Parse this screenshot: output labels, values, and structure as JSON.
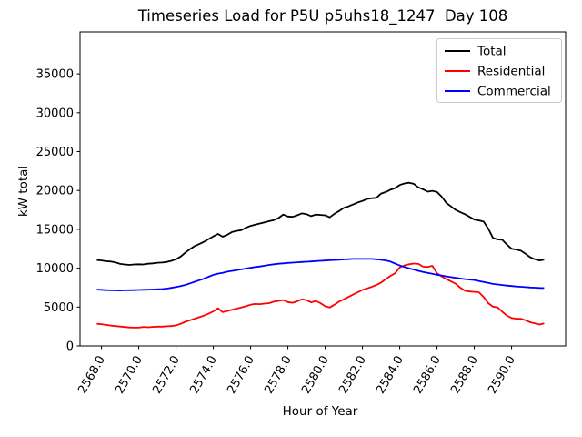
{
  "figure": {
    "background": "#ffffff"
  },
  "chart_data": {
    "type": "line",
    "title": "Timeseries Load for P5U p5uhs18_1247  Day 108",
    "xlabel": "Hour of Year",
    "ylabel": "kW total",
    "grid": false,
    "xlim": [
      2566.85,
      2592.9
    ],
    "ylim": [
      0,
      40400
    ],
    "yticks": [
      0,
      5000,
      10000,
      15000,
      20000,
      25000,
      30000,
      35000
    ],
    "xticks": [
      2568,
      2570,
      2572,
      2574,
      2576,
      2578,
      2580,
      2582,
      2584,
      2586,
      2588,
      2590
    ],
    "xtick_labels": [
      "2568.0",
      "2570.0",
      "2572.0",
      "2574.0",
      "2576.0",
      "2578.0",
      "2580.0",
      "2582.0",
      "2584.0",
      "2586.0",
      "2588.0",
      "2590.0"
    ],
    "legend": {
      "position": "upper right",
      "entries": [
        {
          "label": "Total",
          "color": "#000000"
        },
        {
          "label": "Residential",
          "color": "#ff0000"
        },
        {
          "label": "Commercial",
          "color": "#0000ff"
        }
      ]
    },
    "x": [
      2567.75,
      2568.0,
      2568.25,
      2568.5,
      2568.75,
      2569.0,
      2569.25,
      2569.5,
      2569.75,
      2570.0,
      2570.25,
      2570.5,
      2570.75,
      2571.0,
      2571.25,
      2571.5,
      2571.75,
      2572.0,
      2572.25,
      2572.5,
      2572.75,
      2573.0,
      2573.25,
      2573.5,
      2573.75,
      2574.0,
      2574.25,
      2574.5,
      2574.75,
      2575.0,
      2575.25,
      2575.5,
      2575.75,
      2576.0,
      2576.25,
      2576.5,
      2576.75,
      2577.0,
      2577.25,
      2577.5,
      2577.75,
      2578.0,
      2578.25,
      2578.5,
      2578.75,
      2579.0,
      2579.25,
      2579.5,
      2579.75,
      2580.0,
      2580.25,
      2580.5,
      2580.75,
      2581.0,
      2581.25,
      2581.5,
      2581.75,
      2582.0,
      2582.25,
      2582.5,
      2582.75,
      2583.0,
      2583.25,
      2583.5,
      2583.75,
      2584.0,
      2584.25,
      2584.5,
      2584.75,
      2585.0,
      2585.25,
      2585.5,
      2585.75,
      2586.0,
      2586.25,
      2586.5,
      2586.75,
      2587.0,
      2587.25,
      2587.5,
      2587.75,
      2588.0,
      2588.25,
      2588.5,
      2588.75,
      2589.0,
      2589.25,
      2589.5,
      2589.75,
      2590.0,
      2590.25,
      2590.5,
      2590.75,
      2591.0,
      2591.25,
      2591.5,
      2591.75
    ],
    "series": [
      {
        "name": "Total",
        "color": "#000000",
        "values": [
          11050,
          11000,
          10900,
          10850,
          10750,
          10550,
          10480,
          10420,
          10480,
          10500,
          10480,
          10570,
          10620,
          10700,
          10730,
          10800,
          10950,
          11150,
          11500,
          12000,
          12450,
          12850,
          13100,
          13400,
          13750,
          14100,
          14400,
          14050,
          14300,
          14650,
          14800,
          14900,
          15200,
          15450,
          15600,
          15750,
          15900,
          16050,
          16200,
          16450,
          16900,
          16650,
          16600,
          16800,
          17050,
          16950,
          16700,
          16900,
          16850,
          16800,
          16550,
          17000,
          17350,
          17750,
          17950,
          18200,
          18450,
          18650,
          18900,
          19000,
          19050,
          19600,
          19800,
          20100,
          20300,
          20700,
          20900,
          21000,
          20850,
          20400,
          20150,
          19850,
          19950,
          19800,
          19200,
          18400,
          17950,
          17500,
          17200,
          16950,
          16600,
          16250,
          16150,
          16000,
          15100,
          13900,
          13700,
          13650,
          13050,
          12500,
          12400,
          12250,
          11850,
          11400,
          11150,
          11000,
          11100
        ]
      },
      {
        "name": "Residential",
        "color": "#ff0000",
        "values": [
          2850,
          2800,
          2700,
          2620,
          2550,
          2500,
          2430,
          2380,
          2350,
          2350,
          2450,
          2400,
          2450,
          2480,
          2480,
          2530,
          2550,
          2650,
          2850,
          3100,
          3300,
          3500,
          3700,
          3900,
          4150,
          4450,
          4850,
          4350,
          4500,
          4650,
          4800,
          4950,
          5100,
          5300,
          5400,
          5380,
          5450,
          5500,
          5700,
          5800,
          5900,
          5650,
          5550,
          5750,
          6000,
          5900,
          5600,
          5800,
          5500,
          5100,
          4950,
          5300,
          5700,
          6000,
          6300,
          6600,
          6900,
          7200,
          7400,
          7600,
          7850,
          8150,
          8600,
          9000,
          9350,
          10100,
          10350,
          10500,
          10600,
          10550,
          10200,
          10150,
          10300,
          9350,
          8950,
          8600,
          8300,
          8000,
          7500,
          7100,
          7000,
          6950,
          6900,
          6300,
          5500,
          5050,
          4950,
          4400,
          3900,
          3600,
          3500,
          3500,
          3300,
          3050,
          2900,
          2750,
          2900
        ]
      },
      {
        "name": "Commercial",
        "color": "#0000ff",
        "values": [
          7250,
          7220,
          7180,
          7160,
          7140,
          7130,
          7150,
          7170,
          7180,
          7200,
          7220,
          7240,
          7260,
          7280,
          7320,
          7380,
          7470,
          7580,
          7700,
          7850,
          8050,
          8250,
          8450,
          8650,
          8900,
          9150,
          9300,
          9400,
          9550,
          9650,
          9750,
          9850,
          9950,
          10050,
          10150,
          10220,
          10320,
          10420,
          10500,
          10570,
          10620,
          10680,
          10720,
          10760,
          10800,
          10830,
          10870,
          10910,
          10950,
          10980,
          11020,
          11060,
          11090,
          11120,
          11160,
          11190,
          11200,
          11200,
          11200,
          11190,
          11150,
          11080,
          10990,
          10850,
          10600,
          10350,
          10150,
          9980,
          9820,
          9660,
          9520,
          9400,
          9270,
          9150,
          9050,
          8950,
          8850,
          8760,
          8680,
          8600,
          8540,
          8480,
          8350,
          8220,
          8100,
          7980,
          7900,
          7830,
          7760,
          7700,
          7650,
          7610,
          7560,
          7520,
          7490,
          7460,
          7450
        ]
      }
    ]
  }
}
